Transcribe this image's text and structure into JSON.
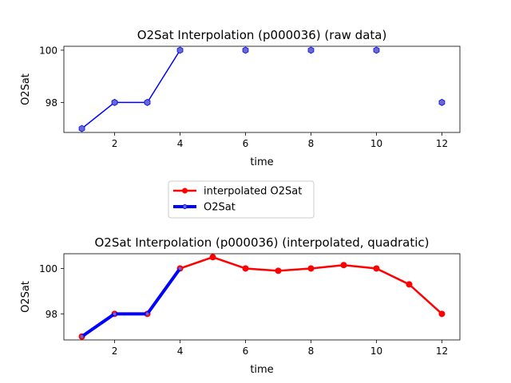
{
  "chart_data": [
    {
      "type": "line",
      "title": "O2Sat Interpolation (p000036) (raw data)",
      "xlabel": "time",
      "ylabel": "O2Sat",
      "xlim": [
        0.45,
        12.55
      ],
      "ylim": [
        96.85,
        100.15
      ],
      "xticks": [
        2,
        4,
        6,
        8,
        10,
        12
      ],
      "yticks": [
        98,
        100
      ],
      "series": [
        {
          "name": "O2Sat",
          "color": "#0000ff",
          "marker_color": "#6a6acd",
          "points": [
            {
              "x": 1,
              "y": 97
            },
            {
              "x": 2,
              "y": 98
            },
            {
              "x": 3,
              "y": 98
            },
            {
              "x": 4,
              "y": 100
            },
            {
              "x": 6,
              "y": 100
            },
            {
              "x": 8,
              "y": 100
            },
            {
              "x": 10,
              "y": 100
            },
            {
              "x": 12,
              "y": 98
            }
          ],
          "connected_through": 4
        }
      ]
    },
    {
      "type": "line",
      "title": "O2Sat Interpolation (p000036) (interpolated, quadratic)",
      "xlabel": "time",
      "ylabel": "O2Sat",
      "xlim": [
        0.45,
        12.55
      ],
      "ylim": [
        96.85,
        100.65
      ],
      "xticks": [
        2,
        4,
        6,
        8,
        10,
        12
      ],
      "yticks": [
        98,
        100
      ],
      "series": [
        {
          "name": "interpolated O2Sat",
          "color": "#ff0000",
          "points": [
            {
              "x": 1,
              "y": 97
            },
            {
              "x": 2,
              "y": 98
            },
            {
              "x": 3,
              "y": 98
            },
            {
              "x": 4,
              "y": 100
            },
            {
              "x": 5,
              "y": 100.5
            },
            {
              "x": 6,
              "y": 100
            },
            {
              "x": 7,
              "y": 99.9
            },
            {
              "x": 8,
              "y": 100
            },
            {
              "x": 9,
              "y": 100.15
            },
            {
              "x": 10,
              "y": 100
            },
            {
              "x": 11,
              "y": 99.3
            },
            {
              "x": 12,
              "y": 98
            }
          ]
        },
        {
          "name": "O2Sat",
          "color": "#0000ff",
          "points": [
            {
              "x": 1,
              "y": 97
            },
            {
              "x": 2,
              "y": 98
            },
            {
              "x": 3,
              "y": 98
            },
            {
              "x": 4,
              "y": 100
            }
          ]
        }
      ]
    }
  ],
  "legend": {
    "entries": [
      {
        "label": "interpolated O2Sat",
        "color": "#ff0000"
      },
      {
        "label": "O2Sat",
        "color": "#0000ff"
      }
    ],
    "placement": "between-plots"
  }
}
